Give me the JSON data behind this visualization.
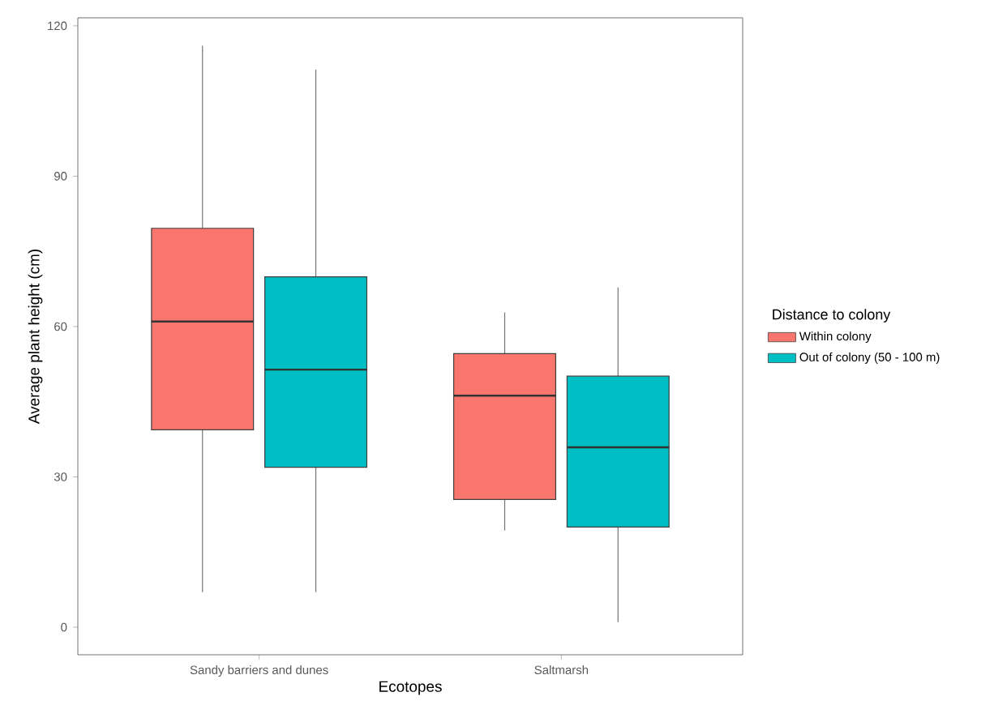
{
  "chart_data": {
    "type": "box",
    "xlabel": "Ecotopes",
    "ylabel": "Average plant height (cm)",
    "legend_title": "Distance to colony",
    "legend": "right",
    "categories": [
      "Sandy barriers and dunes",
      "Saltmarsh"
    ],
    "series": [
      {
        "name": "Within colony",
        "color": "#f8766d",
        "boxes": [
          {
            "low": 7,
            "q1": 39.4,
            "median": 61,
            "q3": 79.6,
            "high": 116
          },
          {
            "low": 19.3,
            "q1": 25.5,
            "median": 46.2,
            "q3": 54.6,
            "high": 62.8
          }
        ]
      },
      {
        "name": "Out of colony (50 - 100 m)",
        "color": "#00bfc4",
        "boxes": [
          {
            "low": 7,
            "q1": 31.9,
            "median": 51.4,
            "q3": 69.9,
            "high": 111.3
          },
          {
            "low": 1,
            "q1": 20,
            "median": 35.9,
            "q3": 50.1,
            "high": 67.8
          }
        ]
      }
    ],
    "ylim": [
      -5.5,
      121.6
    ],
    "yticks": [
      0,
      30,
      60,
      90,
      120
    ]
  }
}
